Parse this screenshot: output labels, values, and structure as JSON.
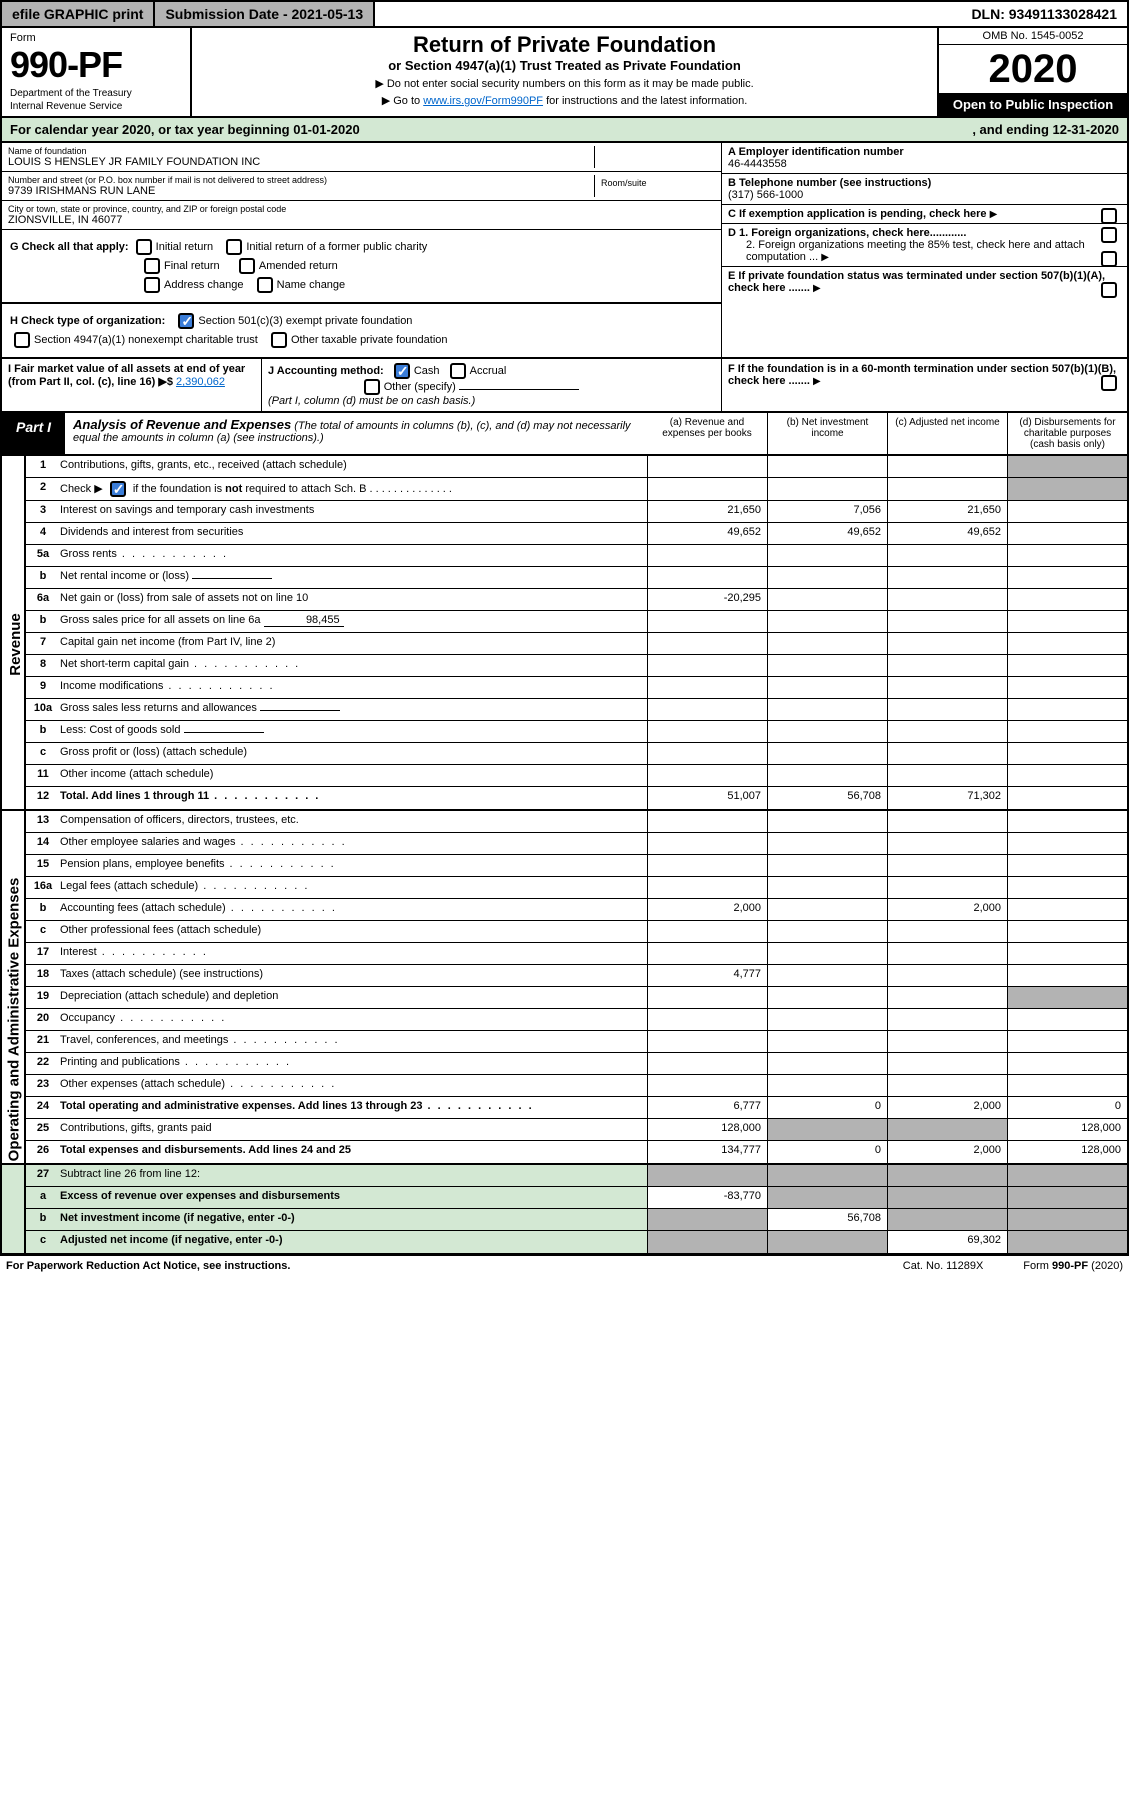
{
  "topbar": {
    "efile": "efile GRAPHIC print",
    "sub_lbl": "Submission Date - 2021-05-13",
    "dln": "DLN: 93491133028421"
  },
  "header": {
    "form": "Form",
    "formnum": "990-PF",
    "dept": "Department of the Treasury",
    "irs": "Internal Revenue Service",
    "title": "Return of Private Foundation",
    "subtitle": "or Section 4947(a)(1) Trust Treated as Private Foundation",
    "instr1": "▶ Do not enter social security numbers on this form as it may be made public.",
    "instr2_pre": "▶ Go to ",
    "instr2_link": "www.irs.gov/Form990PF",
    "instr2_post": " for instructions and the latest information.",
    "omb": "OMB No. 1545-0052",
    "year": "2020",
    "open": "Open to Public Inspection"
  },
  "calyear": {
    "pre": "For calendar year 2020, or tax year beginning 01-01-2020",
    "end": ", and ending 12-31-2020"
  },
  "info": {
    "name_lbl": "Name of foundation",
    "name": "LOUIS S HENSLEY JR FAMILY FOUNDATION INC",
    "addr_lbl": "Number and street (or P.O. box number if mail is not delivered to street address)",
    "addr": "9739 IRISHMANS RUN LANE",
    "room_lbl": "Room/suite",
    "city_lbl": "City or town, state or province, country, and ZIP or foreign postal code",
    "city": "ZIONSVILLE, IN  46077",
    "ein_lbl": "A Employer identification number",
    "ein": "46-4443558",
    "tel_lbl": "B Telephone number (see instructions)",
    "tel": "(317) 566-1000",
    "c": "C If exemption application is pending, check here",
    "d1": "D 1. Foreign organizations, check here............",
    "d2": "2. Foreign organizations meeting the 85% test, check here and attach computation ...",
    "e": "E  If private foundation status was terminated under section 507(b)(1)(A), check here .......",
    "f": "F  If the foundation is in a 60-month termination under section 507(b)(1)(B), check here ......."
  },
  "checks": {
    "g_lbl": "G Check all that apply:",
    "g1": "Initial return",
    "g2": "Initial return of a former public charity",
    "g3": "Final return",
    "g4": "Amended return",
    "g5": "Address change",
    "g6": "Name change",
    "h_lbl": "H Check type of organization:",
    "h1": "Section 501(c)(3) exempt private foundation",
    "h2": "Section 4947(a)(1) nonexempt charitable trust",
    "h3": "Other taxable private foundation",
    "i_lbl": "I Fair market value of all assets at end of year (from Part II, col. (c), line 16) ▶$ ",
    "i_val": "2,390,062",
    "j_lbl": "J Accounting method:",
    "j1": "Cash",
    "j2": "Accrual",
    "j3": "Other (specify)",
    "j_note": "(Part I, column (d) must be on cash basis.)"
  },
  "part1": {
    "lbl": "Part I",
    "title": "Analysis of Revenue and Expenses",
    "note": " (The total of amounts in columns (b), (c), and (d) may not necessarily equal the amounts in column (a) (see instructions).)",
    "cols": {
      "a": "(a) Revenue and expenses per books",
      "b": "(b) Net investment income",
      "c": "(c) Adjusted net income",
      "d": "(d) Disbursements for charitable purposes (cash basis only)"
    }
  },
  "sections": {
    "rev": "Revenue",
    "exp": "Operating and Administrative Expenses"
  },
  "rows": [
    {
      "n": "1",
      "t": "Contributions, gifts, grants, etc., received (attach schedule)",
      "a": "",
      "b": "",
      "c": "",
      "d": "",
      "ds": true
    },
    {
      "n": "2",
      "t": "Check ▶ [✓] if the foundation is not required to attach Sch. B",
      "a": "",
      "b": "",
      "c": "",
      "d": "",
      "ck": true,
      "ds": true
    },
    {
      "n": "3",
      "t": "Interest on savings and temporary cash investments",
      "a": "21,650",
      "b": "7,056",
      "c": "21,650",
      "d": ""
    },
    {
      "n": "4",
      "t": "Dividends and interest from securities",
      "a": "49,652",
      "b": "49,652",
      "c": "49,652",
      "d": ""
    },
    {
      "n": "5a",
      "t": "Gross rents",
      "a": "",
      "b": "",
      "c": "",
      "d": "",
      "dots": true
    },
    {
      "n": "b",
      "t": "Net rental income or (loss)",
      "a": "",
      "b": "",
      "c": "",
      "d": "",
      "inline": true
    },
    {
      "n": "6a",
      "t": "Net gain or (loss) from sale of assets not on line 10",
      "a": "-20,295",
      "b": "",
      "c": "",
      "d": ""
    },
    {
      "n": "b",
      "t": "Gross sales price for all assets on line 6a",
      "a": "",
      "b": "",
      "c": "",
      "d": "",
      "inline": true,
      "ival": "98,455"
    },
    {
      "n": "7",
      "t": "Capital gain net income (from Part IV, line 2)",
      "a": "",
      "b": "",
      "c": "",
      "d": ""
    },
    {
      "n": "8",
      "t": "Net short-term capital gain",
      "a": "",
      "b": "",
      "c": "",
      "d": "",
      "dots": true
    },
    {
      "n": "9",
      "t": "Income modifications",
      "a": "",
      "b": "",
      "c": "",
      "d": "",
      "dots": true
    },
    {
      "n": "10a",
      "t": "Gross sales less returns and allowances",
      "a": "",
      "b": "",
      "c": "",
      "d": "",
      "inline": true
    },
    {
      "n": "b",
      "t": "Less: Cost of goods sold",
      "a": "",
      "b": "",
      "c": "",
      "d": "",
      "inline": true
    },
    {
      "n": "c",
      "t": "Gross profit or (loss) (attach schedule)",
      "a": "",
      "b": "",
      "c": "",
      "d": ""
    },
    {
      "n": "11",
      "t": "Other income (attach schedule)",
      "a": "",
      "b": "",
      "c": "",
      "d": ""
    },
    {
      "n": "12",
      "t": "Total. Add lines 1 through 11",
      "a": "51,007",
      "b": "56,708",
      "c": "71,302",
      "d": "",
      "bold": true,
      "dots": true
    }
  ],
  "exp_rows": [
    {
      "n": "13",
      "t": "Compensation of officers, directors, trustees, etc.",
      "a": "",
      "b": "",
      "c": "",
      "d": ""
    },
    {
      "n": "14",
      "t": "Other employee salaries and wages",
      "a": "",
      "b": "",
      "c": "",
      "d": "",
      "dots": true
    },
    {
      "n": "15",
      "t": "Pension plans, employee benefits",
      "a": "",
      "b": "",
      "c": "",
      "d": "",
      "dots": true
    },
    {
      "n": "16a",
      "t": "Legal fees (attach schedule)",
      "a": "",
      "b": "",
      "c": "",
      "d": "",
      "dots": true
    },
    {
      "n": "b",
      "t": "Accounting fees (attach schedule)",
      "a": "2,000",
      "b": "",
      "c": "2,000",
      "d": "",
      "dots": true
    },
    {
      "n": "c",
      "t": "Other professional fees (attach schedule)",
      "a": "",
      "b": "",
      "c": "",
      "d": ""
    },
    {
      "n": "17",
      "t": "Interest",
      "a": "",
      "b": "",
      "c": "",
      "d": "",
      "dots": true
    },
    {
      "n": "18",
      "t": "Taxes (attach schedule) (see instructions)",
      "a": "4,777",
      "b": "",
      "c": "",
      "d": ""
    },
    {
      "n": "19",
      "t": "Depreciation (attach schedule) and depletion",
      "a": "",
      "b": "",
      "c": "",
      "d": "",
      "ds": true
    },
    {
      "n": "20",
      "t": "Occupancy",
      "a": "",
      "b": "",
      "c": "",
      "d": "",
      "dots": true
    },
    {
      "n": "21",
      "t": "Travel, conferences, and meetings",
      "a": "",
      "b": "",
      "c": "",
      "d": "",
      "dots": true
    },
    {
      "n": "22",
      "t": "Printing and publications",
      "a": "",
      "b": "",
      "c": "",
      "d": "",
      "dots": true
    },
    {
      "n": "23",
      "t": "Other expenses (attach schedule)",
      "a": "",
      "b": "",
      "c": "",
      "d": "",
      "dots": true
    },
    {
      "n": "24",
      "t": "Total operating and administrative expenses. Add lines 13 through 23",
      "a": "6,777",
      "b": "0",
      "c": "2,000",
      "d": "0",
      "bold": true,
      "dots": true
    },
    {
      "n": "25",
      "t": "Contributions, gifts, grants paid",
      "a": "128,000",
      "b": "",
      "c": "",
      "d": "128,000",
      "bs": true,
      "cs": true
    },
    {
      "n": "26",
      "t": "Total expenses and disbursements. Add lines 24 and 25",
      "a": "134,777",
      "b": "0",
      "c": "2,000",
      "d": "128,000",
      "bold": true
    }
  ],
  "final_rows": [
    {
      "n": "27",
      "t": "Subtract line 26 from line 12:",
      "a": "",
      "b": "",
      "c": "",
      "d": "",
      "as": true,
      "bs": true,
      "cs": true,
      "ds": true
    },
    {
      "n": "a",
      "t": "Excess of revenue over expenses and disbursements",
      "a": "-83,770",
      "b": "",
      "c": "",
      "d": "",
      "bold": true,
      "bs": true,
      "cs": true,
      "ds": true
    },
    {
      "n": "b",
      "t": "Net investment income (if negative, enter -0-)",
      "a": "",
      "b": "56,708",
      "c": "",
      "d": "",
      "bold": true,
      "as": true,
      "cs": true,
      "ds": true
    },
    {
      "n": "c",
      "t": "Adjusted net income (if negative, enter -0-)",
      "a": "",
      "b": "",
      "c": "69,302",
      "d": "",
      "bold": true,
      "as": true,
      "bs": true,
      "ds": true
    }
  ],
  "footer": {
    "left": "For Paperwork Reduction Act Notice, see instructions.",
    "mid": "Cat. No. 11289X",
    "right": "Form 990-PF (2020)"
  }
}
